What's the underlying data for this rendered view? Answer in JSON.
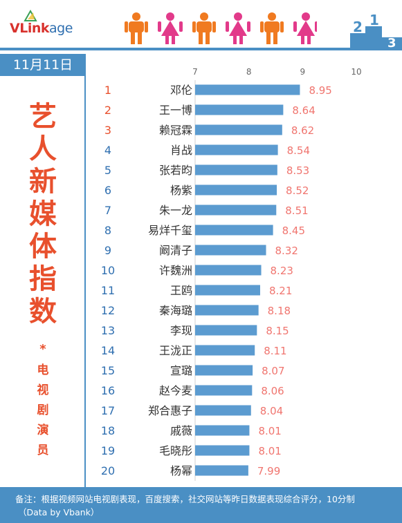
{
  "logo": {
    "v": "V",
    "rest": "Link",
    "suffix": "age"
  },
  "date": "11月11日",
  "title_chars": [
    "艺",
    "人",
    "新",
    "媒",
    "体",
    "指",
    "数"
  ],
  "star": "*",
  "subtitle_chars": [
    "电",
    "视",
    "剧",
    "演",
    "员"
  ],
  "footer": {
    "line1": "备注：根据视频网站电视剧表现，百度搜索，社交网站等昨日数据表现综合评分，10分制",
    "line2": "（Data by Vbank）"
  },
  "colors": {
    "accent": "#4a8fc4",
    "bar": "#5b9bd0",
    "title": "#e8502d",
    "value": "#f0756f"
  },
  "chart_data": {
    "type": "bar",
    "orientation": "horizontal",
    "xlim": [
      7,
      10
    ],
    "ticks": [
      "7",
      "8",
      "9",
      "10"
    ],
    "ranks": [
      "1",
      "2",
      "3",
      "4",
      "5",
      "6",
      "7",
      "8",
      "9",
      "10",
      "11",
      "12",
      "13",
      "14",
      "15",
      "16",
      "17",
      "18",
      "19",
      "20"
    ],
    "categories": [
      "邓伦",
      "王一博",
      "赖冠霖",
      "肖战",
      "张若昀",
      "杨紫",
      "朱一龙",
      "易烊千玺",
      "阚清子",
      "许魏洲",
      "王鸥",
      "秦海璐",
      "李现",
      "王泷正",
      "宣璐",
      "赵今麦",
      "郑合惠子",
      "戚薇",
      "毛晓彤",
      "杨幂"
    ],
    "values": [
      8.95,
      8.64,
      8.62,
      8.54,
      8.53,
      8.52,
      8.51,
      8.45,
      8.32,
      8.23,
      8.21,
      8.18,
      8.15,
      8.11,
      8.07,
      8.06,
      8.04,
      8.01,
      8.01,
      7.99
    ],
    "value_labels": [
      "8.95",
      "8.64",
      "8.62",
      "8.54",
      "8.53",
      "8.52",
      "8.51",
      "8.45",
      "8.32",
      "8.23",
      "8.21",
      "8.18",
      "8.15",
      "8.11",
      "8.07",
      "8.06",
      "8.04",
      "8.01",
      "8.01",
      "7.99"
    ]
  }
}
